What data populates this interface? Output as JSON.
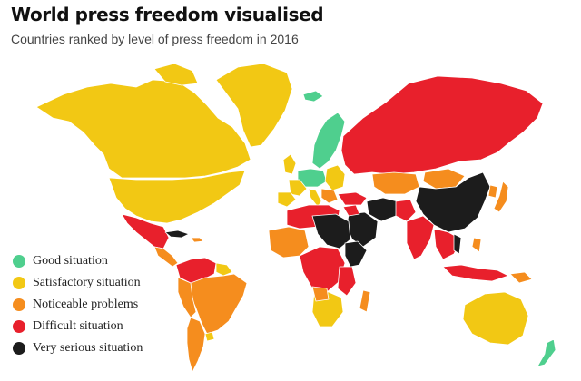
{
  "header": {
    "title": "World press freedom visualised",
    "subtitle": "Countries ranked by level of press freedom in 2016"
  },
  "colors": {
    "good": "#4fcf8e",
    "satisfactory": "#f2c814",
    "noticeable": "#f58d1e",
    "difficult": "#e8202c",
    "very_serious": "#1c1c1c",
    "border": "#ffffff"
  },
  "legend": {
    "items": [
      {
        "label": "Good situation",
        "color": "#4fcf8e"
      },
      {
        "label": "Satisfactory situation",
        "color": "#f2c814"
      },
      {
        "label": "Noticeable problems",
        "color": "#f58d1e"
      },
      {
        "label": "Difficult situation",
        "color": "#e8202c"
      },
      {
        "label": "Very serious situation",
        "color": "#1c1c1c"
      }
    ]
  }
}
